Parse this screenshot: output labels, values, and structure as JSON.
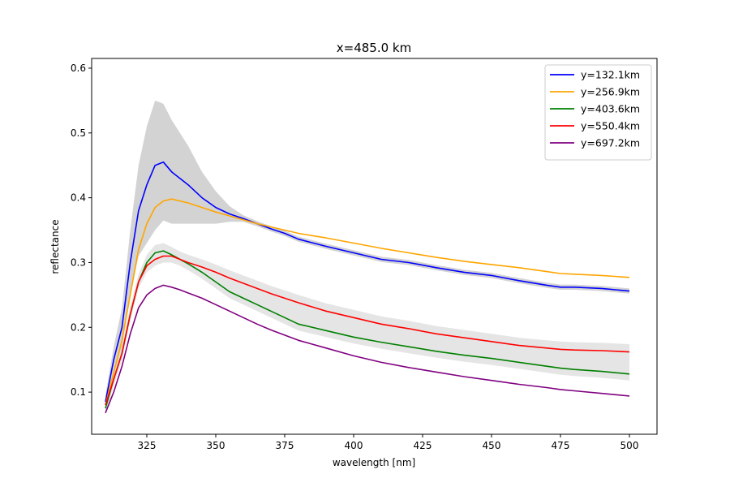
{
  "chart_data": {
    "type": "line",
    "title": "x=485.0 km",
    "xlabel": "wavelength [nm]",
    "ylabel": "reflectance",
    "xlim": [
      305,
      510
    ],
    "ylim": [
      0.035,
      0.615
    ],
    "xticks": [
      325,
      350,
      375,
      400,
      425,
      450,
      475,
      500
    ],
    "yticks": [
      0.1,
      0.2,
      0.3,
      0.4,
      0.5,
      0.6
    ],
    "grid": false,
    "legend_position": "top-right",
    "uncertainty_band_color": "#d3d3d3",
    "series": [
      {
        "name": "y=132.1km",
        "color": "#0000ff",
        "x": [
          310,
          313,
          316,
          319,
          322,
          325,
          328,
          331,
          334,
          337,
          340,
          345,
          350,
          355,
          360,
          365,
          370,
          375,
          380,
          390,
          400,
          410,
          420,
          430,
          440,
          450,
          460,
          470,
          475,
          480,
          490,
          500
        ],
        "y": [
          0.085,
          0.15,
          0.2,
          0.3,
          0.38,
          0.42,
          0.45,
          0.455,
          0.44,
          0.43,
          0.42,
          0.4,
          0.385,
          0.375,
          0.368,
          0.36,
          0.352,
          0.345,
          0.336,
          0.325,
          0.315,
          0.305,
          0.3,
          0.292,
          0.285,
          0.28,
          0.272,
          0.265,
          0.262,
          0.262,
          0.26,
          0.256
        ],
        "band": [
          0.01,
          0.02,
          0.03,
          0.05,
          0.07,
          0.09,
          0.1,
          0.09,
          0.08,
          0.07,
          0.06,
          0.04,
          0.025,
          0.012,
          0.005,
          0.004,
          0.004,
          0.004,
          0.004,
          0.004,
          0.004,
          0.004,
          0.004,
          0.004,
          0.004,
          0.004,
          0.004,
          0.004,
          0.004,
          0.004,
          0.004,
          0.004
        ]
      },
      {
        "name": "y=256.9km",
        "color": "#ffa500",
        "x": [
          310,
          313,
          316,
          319,
          322,
          325,
          328,
          331,
          334,
          337,
          340,
          345,
          350,
          355,
          360,
          365,
          370,
          375,
          380,
          390,
          400,
          410,
          420,
          430,
          440,
          450,
          460,
          470,
          475,
          480,
          490,
          500
        ],
        "y": [
          0.08,
          0.13,
          0.18,
          0.25,
          0.32,
          0.36,
          0.385,
          0.395,
          0.398,
          0.395,
          0.392,
          0.385,
          0.378,
          0.372,
          0.366,
          0.36,
          0.355,
          0.35,
          0.345,
          0.338,
          0.33,
          0.322,
          0.315,
          0.308,
          0.302,
          0.297,
          0.292,
          0.286,
          0.283,
          0.282,
          0.28,
          0.277
        ]
      },
      {
        "name": "y=403.6km",
        "color": "#008000",
        "x": [
          310,
          313,
          316,
          319,
          322,
          325,
          328,
          331,
          334,
          337,
          340,
          345,
          350,
          355,
          360,
          365,
          370,
          375,
          380,
          390,
          400,
          410,
          420,
          430,
          440,
          450,
          460,
          470,
          475,
          480,
          490,
          500
        ],
        "y": [
          0.075,
          0.12,
          0.16,
          0.22,
          0.27,
          0.3,
          0.315,
          0.318,
          0.312,
          0.305,
          0.298,
          0.285,
          0.27,
          0.255,
          0.245,
          0.235,
          0.225,
          0.215,
          0.205,
          0.195,
          0.185,
          0.177,
          0.17,
          0.163,
          0.157,
          0.152,
          0.146,
          0.14,
          0.137,
          0.135,
          0.132,
          0.128
        ]
      },
      {
        "name": "y=550.4km",
        "color": "#ff0000",
        "x": [
          310,
          313,
          316,
          319,
          322,
          325,
          328,
          331,
          334,
          337,
          340,
          345,
          350,
          355,
          360,
          365,
          370,
          375,
          380,
          390,
          400,
          410,
          420,
          430,
          440,
          450,
          460,
          470,
          475,
          480,
          490,
          500
        ],
        "y": [
          0.08,
          0.12,
          0.16,
          0.22,
          0.27,
          0.295,
          0.305,
          0.31,
          0.31,
          0.305,
          0.3,
          0.293,
          0.285,
          0.276,
          0.268,
          0.26,
          0.252,
          0.245,
          0.238,
          0.225,
          0.215,
          0.205,
          0.198,
          0.19,
          0.184,
          0.178,
          0.172,
          0.168,
          0.166,
          0.165,
          0.164,
          0.162
        ]
      },
      {
        "name": "y=697.2km",
        "color": "#800080",
        "x": [
          310,
          313,
          316,
          319,
          322,
          325,
          328,
          331,
          334,
          337,
          340,
          345,
          350,
          355,
          360,
          365,
          370,
          375,
          380,
          390,
          400,
          410,
          420,
          430,
          440,
          450,
          460,
          470,
          475,
          480,
          490,
          500
        ],
        "y": [
          0.068,
          0.1,
          0.14,
          0.19,
          0.23,
          0.25,
          0.26,
          0.265,
          0.262,
          0.258,
          0.253,
          0.245,
          0.235,
          0.225,
          0.215,
          0.205,
          0.196,
          0.188,
          0.18,
          0.168,
          0.156,
          0.146,
          0.138,
          0.131,
          0.124,
          0.118,
          0.112,
          0.107,
          0.104,
          0.102,
          0.098,
          0.094
        ]
      }
    ]
  }
}
